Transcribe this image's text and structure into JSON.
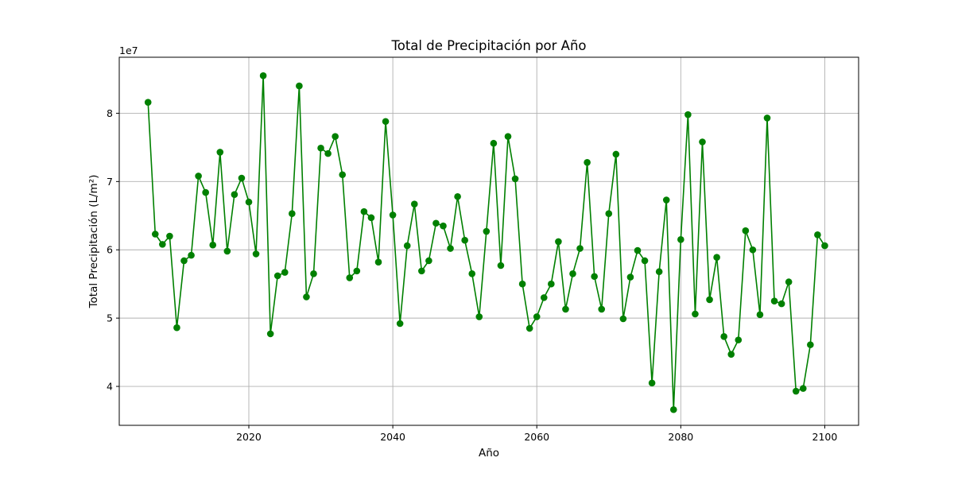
{
  "chart_data": {
    "type": "line",
    "title": "Total de Precipitación por Año",
    "xlabel": "Año",
    "ylabel": "Total Precipitación (L/m²)",
    "y_multiplier_label": "1e7",
    "y_scale": 10000000,
    "xlim": [
      2002,
      2104.7
    ],
    "ylim": [
      3.43,
      8.82
    ],
    "x_ticks": [
      2020,
      2040,
      2060,
      2080,
      2100
    ],
    "y_ticks": [
      4,
      5,
      6,
      7,
      8
    ],
    "grid": true,
    "series": [
      {
        "color": "#008000",
        "marker": "circle",
        "x": [
          2006,
          2007,
          2008,
          2009,
          2010,
          2011,
          2012,
          2013,
          2014,
          2015,
          2016,
          2017,
          2018,
          2019,
          2020,
          2021,
          2022,
          2023,
          2024,
          2025,
          2026,
          2027,
          2028,
          2029,
          2030,
          2031,
          2032,
          2033,
          2034,
          2035,
          2036,
          2037,
          2038,
          2039,
          2040,
          2041,
          2042,
          2043,
          2044,
          2045,
          2046,
          2047,
          2048,
          2049,
          2050,
          2051,
          2052,
          2053,
          2054,
          2055,
          2056,
          2057,
          2058,
          2059,
          2060,
          2061,
          2062,
          2063,
          2064,
          2065,
          2066,
          2067,
          2068,
          2069,
          2070,
          2071,
          2072,
          2073,
          2074,
          2075,
          2076,
          2077,
          2078,
          2079,
          2080,
          2081,
          2082,
          2083,
          2084,
          2085,
          2086,
          2087,
          2088,
          2089,
          2090,
          2091,
          2092,
          2093,
          2094,
          2095,
          2096,
          2097,
          2098,
          2099,
          2100
        ],
        "values": [
          8.16,
          6.23,
          6.08,
          6.2,
          4.86,
          5.84,
          5.92,
          7.08,
          6.84,
          6.07,
          7.43,
          5.98,
          6.81,
          7.05,
          6.7,
          5.94,
          8.55,
          4.77,
          5.62,
          5.67,
          6.53,
          8.4,
          5.31,
          5.65,
          7.49,
          7.41,
          7.66,
          7.1,
          5.59,
          5.69,
          6.56,
          6.47,
          5.82,
          7.88,
          6.51,
          4.92,
          6.06,
          6.67,
          5.69,
          5.84,
          6.39,
          6.35,
          6.02,
          6.78,
          6.14,
          5.65,
          5.02,
          6.27,
          7.56,
          5.77,
          7.66,
          7.04,
          5.5,
          4.85,
          5.02,
          5.3,
          5.5,
          6.12,
          5.13,
          5.65,
          6.02,
          7.28,
          5.61,
          5.13,
          6.53,
          7.4,
          4.99,
          5.6,
          5.99,
          5.84,
          4.05,
          5.68,
          6.73,
          3.66,
          6.15,
          7.98,
          5.06,
          7.58,
          5.27,
          5.89,
          4.73,
          4.47,
          4.68,
          6.28,
          6.0,
          5.05,
          7.93,
          5.25,
          5.21,
          5.53,
          3.93,
          3.97,
          4.61,
          6.22,
          6.06
        ]
      }
    ]
  }
}
